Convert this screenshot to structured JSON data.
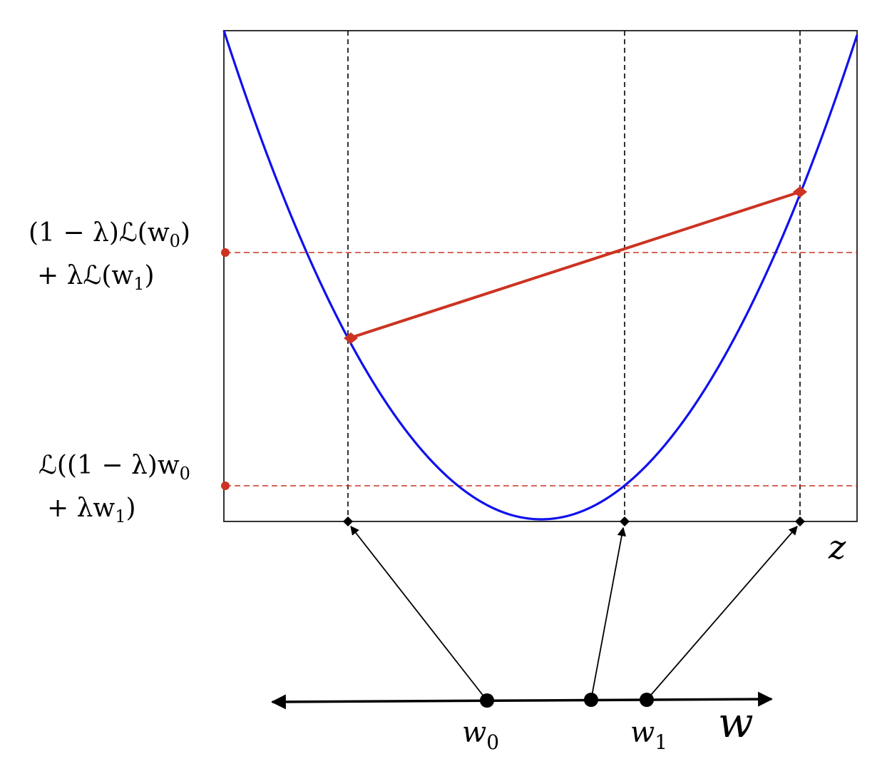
{
  "labels": {
    "upper_line1": "(1 − λ)ℒ(w",
    "upper_line1_sub": "0",
    "upper_line1_close": ")",
    "upper_line2": "+ λℒ(w",
    "upper_line2_sub": "1",
    "upper_line2_close": ")",
    "lower_line1": "ℒ((1 − λ)w",
    "lower_line1_sub": "0",
    "lower_line2": "+ λw",
    "lower_line2_sub": "1",
    "lower_line2_close": ")",
    "z_axis": "z",
    "w_axis": "w",
    "w0": "w",
    "w0_sub": "0",
    "w1": "w",
    "w1_sub": "1"
  },
  "colors": {
    "curve": "#1010ee",
    "chord": "#cc3322",
    "guide": "#cc3322",
    "ink": "#000000"
  }
}
